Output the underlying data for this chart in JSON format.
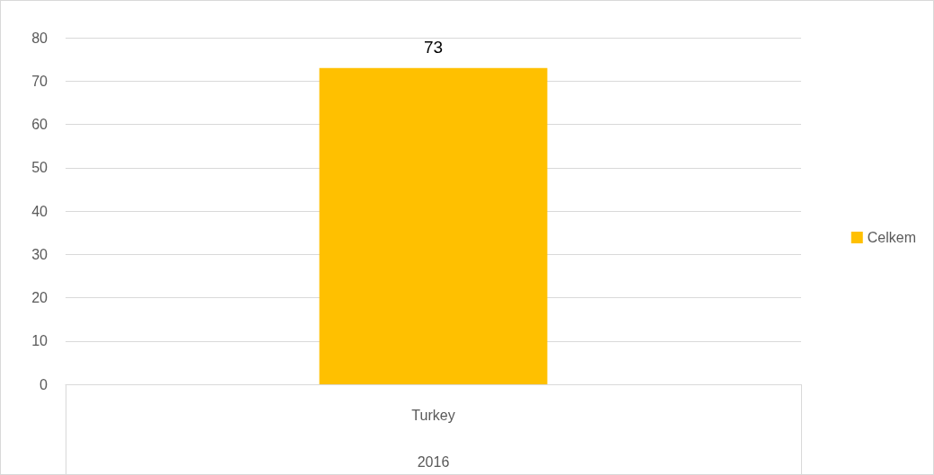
{
  "chart_data": {
    "type": "bar",
    "categories": [
      "Turkey"
    ],
    "xlabel": "2016",
    "series": [
      {
        "name": "Celkem",
        "color": "#ffc000",
        "values": [
          73
        ]
      }
    ],
    "ylim": [
      0,
      80
    ],
    "yticks": [
      0,
      10,
      20,
      30,
      40,
      50,
      60,
      70,
      80
    ],
    "grid": "y",
    "legend": "right",
    "data_labels": true
  }
}
